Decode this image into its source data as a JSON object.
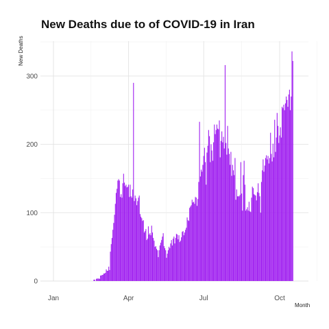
{
  "chart_data": {
    "type": "bar",
    "title": "New Deaths due to of COVID-19 in Iran",
    "xlabel": "Month",
    "ylabel": "New Deaths",
    "x_ticks": [
      {
        "label": "Jan",
        "day": 0
      },
      {
        "label": "Apr",
        "day": 91
      },
      {
        "label": "Jul",
        "day": 182
      },
      {
        "label": "Oct",
        "day": 274
      }
    ],
    "y_ticks": [
      0,
      100,
      200,
      300
    ],
    "ylim": [
      0,
      350
    ],
    "x_range_days": [
      -15,
      310
    ],
    "grid": true,
    "bar_color": "#A020F0",
    "series": [
      {
        "start_date": "2020-02-19",
        "values": [
          2,
          2,
          0,
          3,
          4,
          3,
          4,
          3,
          8,
          8,
          9,
          9,
          11,
          11,
          12,
          17,
          15,
          15,
          21,
          16,
          43,
          54,
          63,
          75,
          85,
          97,
          113,
          129,
          135,
          147,
          149,
          147,
          123,
          127,
          122,
          143,
          157,
          144,
          139,
          141,
          137,
          138,
          141,
          123,
          141,
          124,
          122,
          134,
          290,
          117,
          125,
          121,
          111,
          117,
          122,
          125,
          98,
          94,
          92,
          88,
          89,
          71,
          73,
          76,
          60,
          62,
          80,
          68,
          70,
          67,
          81,
          71,
          63,
          59,
          50,
          51,
          47,
          45,
          35,
          45,
          52,
          56,
          60,
          65,
          70,
          51,
          48,
          45,
          34,
          40,
          45,
          50,
          48,
          55,
          60,
          52,
          62,
          65,
          55,
          63,
          69,
          68,
          61,
          67,
          57,
          59,
          64,
          72,
          73,
          67,
          71,
          75,
          78,
          93,
          89,
          88,
          107,
          109,
          111,
          119,
          115,
          116,
          113,
          123,
          122,
          110,
          120,
          145,
          233,
          153,
          163,
          160,
          170,
          183,
          195,
          174,
          141,
          188,
          198,
          221,
          212,
          174,
          200,
          191,
          176,
          203,
          229,
          215,
          221,
          229,
          223,
          222,
          235,
          181,
          205,
          219,
          203,
          211,
          194,
          316,
          202,
          185,
          227,
          194,
          186,
          170,
          189,
          154,
          170,
          162,
          155,
          180,
          119,
          134,
          124,
          124,
          124,
          126,
          174,
          128,
          103,
          155,
          176,
          141,
          103,
          105,
          108,
          103,
          116,
          102,
          101,
          122,
          138,
          136,
          127,
          126,
          125,
          118,
          130,
          143,
          129,
          124,
          100,
          145,
          162,
          178,
          160,
          169,
          180,
          184,
          178,
          183,
          172,
          180,
          217,
          186,
          175,
          201,
          181,
          236,
          189,
          210,
          246,
          227,
          202,
          213,
          225,
          210,
          255,
          253,
          258,
          250,
          260,
          270,
          265,
          255,
          273,
          280,
          250,
          270,
          336,
          322
        ]
      }
    ]
  }
}
